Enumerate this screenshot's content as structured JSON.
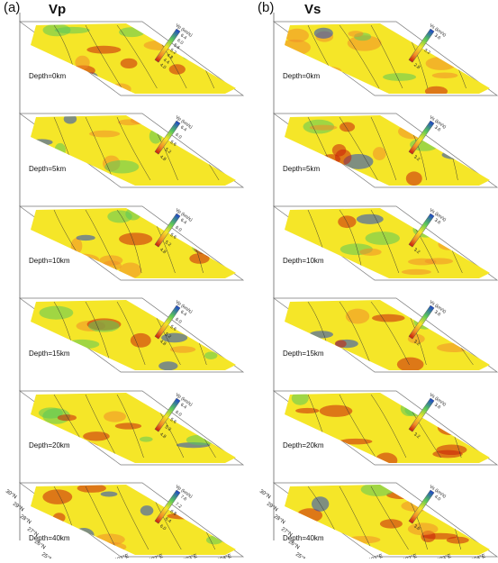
{
  "panels": [
    {
      "letter": "(a)",
      "title": "Vp",
      "unit_label": "Vp (km/s)",
      "layers": [
        {
          "depth": "Depth=0km",
          "ticks": [
            "6.4",
            "6.0",
            "5.6",
            "5.2",
            "4.8",
            "4.4",
            "4.0"
          ]
        },
        {
          "depth": "Depth=5km",
          "ticks": [
            "6.4",
            "6.0",
            "5.6",
            "5.2",
            "4.8"
          ]
        },
        {
          "depth": "Depth=10km",
          "ticks": [
            "6.4",
            "6.0",
            "5.6",
            "5.2",
            "4.8"
          ]
        },
        {
          "depth": "Depth=15km",
          "ticks": [
            "6.4",
            "6.0",
            "5.6",
            "5.2",
            "4.8"
          ]
        },
        {
          "depth": "Depth=20km",
          "ticks": [
            "6.4",
            "6.0",
            "5.6",
            "5.2",
            "4.8"
          ]
        },
        {
          "depth": "Depth=40km",
          "ticks": [
            "7.6",
            "7.2",
            "6.8",
            "6.4",
            "6.0"
          ]
        }
      ]
    },
    {
      "letter": "(b)",
      "title": "Vs",
      "unit_label": "Vs (km/s)",
      "layers": [
        {
          "depth": "Depth=0km",
          "ticks": [
            "3.6",
            "3.2",
            "2.8"
          ]
        },
        {
          "depth": "Depth=5km",
          "ticks": [
            "3.6",
            "3.2"
          ]
        },
        {
          "depth": "Depth=10km",
          "ticks": [
            "3.6",
            "3.2"
          ]
        },
        {
          "depth": "Depth=15km",
          "ticks": [
            "3.6",
            "3.2"
          ]
        },
        {
          "depth": "Depth=20km",
          "ticks": [
            "3.6",
            "3.2"
          ]
        },
        {
          "depth": "Depth=40km",
          "ticks": [
            "4.0",
            "3.6"
          ]
        }
      ]
    }
  ],
  "axes": {
    "lat_ticks": [
      "30°N",
      "29°N",
      "28°N",
      "27°N",
      "26°N",
      "25°N"
    ],
    "lon_ticks": [
      "101°E",
      "102°E",
      "103°E",
      "104°E"
    ]
  },
  "colors": {
    "low": "#c81e0a",
    "mid_low": "#f08c28",
    "mid": "#f5e628",
    "mid_high": "#5ac85a",
    "high": "#1e46c8"
  }
}
